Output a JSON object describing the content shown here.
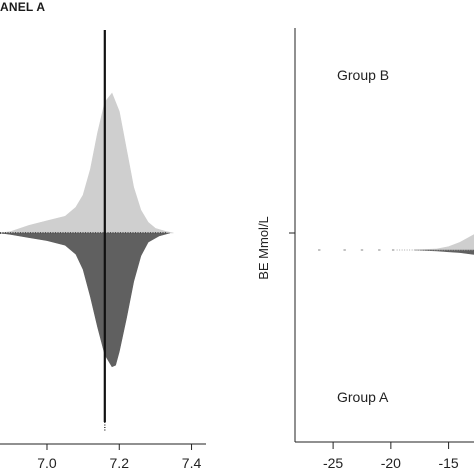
{
  "panel_a_label": "ANEL A",
  "chart_data": [
    {
      "type": "violin",
      "panel": "ANEL A",
      "orientation": "split-horizontal",
      "x_ticks": [
        "7.0",
        "7.2",
        "7.4"
      ],
      "x_tick_values": [
        7.0,
        7.2,
        7.4
      ],
      "xlim": [
        6.87,
        7.44
      ],
      "reference_x": 7.16,
      "groups": [
        {
          "side": "top",
          "color": "#cfcfcf",
          "density": [
            [
              6.87,
              0.0
            ],
            [
              6.9,
              0.01
            ],
            [
              6.95,
              0.05
            ],
            [
              7.0,
              0.08
            ],
            [
              7.05,
              0.11
            ],
            [
              7.08,
              0.17
            ],
            [
              7.1,
              0.25
            ],
            [
              7.12,
              0.42
            ],
            [
              7.14,
              0.66
            ],
            [
              7.16,
              0.86
            ],
            [
              7.18,
              0.92
            ],
            [
              7.2,
              0.8
            ],
            [
              7.22,
              0.55
            ],
            [
              7.24,
              0.3
            ],
            [
              7.26,
              0.15
            ],
            [
              7.28,
              0.07
            ],
            [
              7.3,
              0.03
            ],
            [
              7.33,
              0.01
            ],
            [
              7.35,
              0.0
            ]
          ]
        },
        {
          "side": "bottom",
          "color": "#606060",
          "density": [
            [
              6.87,
              0.0
            ],
            [
              6.9,
              0.01
            ],
            [
              6.95,
              0.03
            ],
            [
              7.0,
              0.05
            ],
            [
              7.05,
              0.08
            ],
            [
              7.08,
              0.14
            ],
            [
              7.1,
              0.24
            ],
            [
              7.12,
              0.42
            ],
            [
              7.14,
              0.62
            ],
            [
              7.16,
              0.8
            ],
            [
              7.18,
              0.88
            ],
            [
              7.19,
              0.87
            ],
            [
              7.2,
              0.78
            ],
            [
              7.22,
              0.56
            ],
            [
              7.24,
              0.32
            ],
            [
              7.26,
              0.15
            ],
            [
              7.28,
              0.06
            ],
            [
              7.31,
              0.02
            ],
            [
              7.34,
              0.0
            ]
          ]
        }
      ]
    },
    {
      "type": "violin",
      "orientation": "split-horizontal",
      "ylabel": "BE Mmol/L",
      "x_ticks": [
        "-25",
        "-20",
        "-15"
      ],
      "x_tick_values": [
        -25,
        -20,
        -15
      ],
      "xlim": [
        -28.3,
        -12.8
      ],
      "annotations": [
        "Group B",
        "Group A"
      ],
      "groups": [
        {
          "side": "top",
          "color": "#cfcfcf",
          "density": [
            [
              -18,
              0.0
            ],
            [
              -16,
              0.005
            ],
            [
              -15,
              0.015
            ],
            [
              -14,
              0.035
            ],
            [
              -12.8,
              0.07
            ]
          ]
        },
        {
          "side": "bottom",
          "color": "#606060",
          "density": [
            [
              -18,
              0.0
            ],
            [
              -16,
              0.004
            ],
            [
              -15,
              0.008
            ],
            [
              -14,
              0.012
            ],
            [
              -12.8,
              0.02
            ]
          ]
        }
      ],
      "sparse_points_x": [
        -26.2,
        -24.0,
        -22.5,
        -21.0,
        -19.8
      ]
    }
  ]
}
